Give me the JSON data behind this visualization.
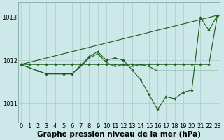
{
  "background_color": "#cce8e8",
  "grid_color": "#aacccc",
  "line_color": "#1a5c1a",
  "x_ticks": [
    0,
    1,
    2,
    3,
    4,
    5,
    6,
    7,
    8,
    9,
    10,
    11,
    12,
    13,
    14,
    15,
    16,
    17,
    18,
    19,
    20,
    21,
    22,
    23
  ],
  "y_ticks": [
    1011,
    1012,
    1013
  ],
  "ylim": [
    1010.55,
    1013.35
  ],
  "xlim": [
    -0.3,
    23.3
  ],
  "xlabel": "Graphe pression niveau de la mer (hPa)",
  "series": [
    {
      "x": [
        0,
        1,
        2,
        3,
        4,
        5,
        6,
        7,
        8,
        9,
        10,
        11,
        12,
        13,
        14,
        15,
        16,
        17,
        18,
        19,
        20,
        21,
        22,
        23
      ],
      "y": [
        1011.9,
        1011.9,
        1011.9,
        1011.9,
        1011.9,
        1011.9,
        1011.9,
        1011.9,
        1011.9,
        1011.9,
        1011.9,
        1011.9,
        1011.9,
        1011.9,
        1011.9,
        1011.9,
        1011.9,
        1011.9,
        1011.9,
        1011.9,
        1011.9,
        1011.9,
        1011.9,
        1013.05
      ],
      "has_markers": true
    },
    {
      "x": [
        0,
        2,
        3,
        4,
        5,
        6,
        7,
        8,
        9,
        10,
        11,
        12,
        13,
        14,
        15,
        16,
        17,
        18,
        19,
        20,
        21,
        22,
        23
      ],
      "y": [
        1011.9,
        1011.75,
        1011.68,
        1011.68,
        1011.68,
        1011.68,
        1011.85,
        1012.05,
        1012.15,
        1011.95,
        1011.85,
        1011.9,
        1011.85,
        1011.9,
        1011.85,
        1011.75,
        1011.75,
        1011.75,
        1011.75,
        1011.75,
        1011.75,
        1011.75,
        1011.75
      ],
      "has_markers": false
    },
    {
      "x": [
        0,
        2,
        3,
        5,
        6,
        7,
        8,
        9,
        10,
        11,
        12,
        13,
        14,
        15,
        16,
        17,
        18,
        19,
        20,
        21,
        22,
        23
      ],
      "y": [
        1011.9,
        1011.75,
        1011.68,
        1011.68,
        1011.68,
        1011.88,
        1012.08,
        1012.2,
        1012.0,
        1012.05,
        1012.0,
        1011.78,
        1011.55,
        1011.2,
        1010.85,
        1011.15,
        1011.1,
        1011.25,
        1011.3,
        1013.0,
        1012.7,
        1013.05
      ],
      "has_markers": true
    },
    {
      "x": [
        0,
        23
      ],
      "y": [
        1011.9,
        1013.05
      ],
      "has_markers": false
    }
  ],
  "title_fontsize": 7.5,
  "tick_fontsize": 6.0
}
